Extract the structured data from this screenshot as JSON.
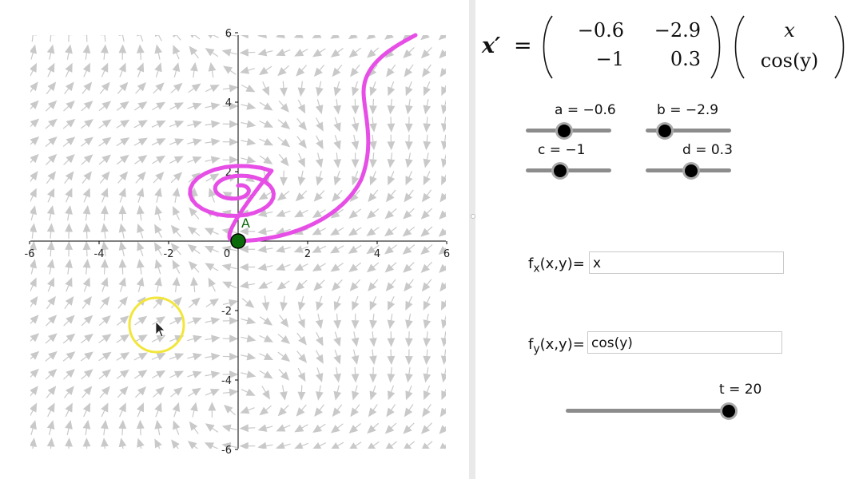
{
  "graph": {
    "axes": {
      "x_ticks": [
        "-6",
        "-4",
        "-2",
        "0",
        "2",
        "4",
        "6"
      ],
      "y_ticks": [
        "6",
        "4",
        "2",
        "-2",
        "-4",
        "-6"
      ],
      "x_range": [
        -6,
        6
      ],
      "y_range": [
        -6,
        6
      ]
    },
    "point": {
      "label": "A",
      "x": 0,
      "y": 0,
      "color": "#0a6a0a"
    },
    "trajectory_color": "#e64ee6",
    "cursor_circle_color": "#f2e63c",
    "field_color": "#c9c9c9"
  },
  "equation": {
    "lhs": "x′",
    "equals": "=",
    "matrix": [
      [
        "−0.6",
        "−2.9"
      ],
      [
        "−1",
        "0.3"
      ]
    ],
    "vector": [
      "x",
      "cos(y)"
    ]
  },
  "sliders": [
    {
      "id": "a",
      "label": "a = −0.6",
      "value": -0.6,
      "fraction": 0.45
    },
    {
      "id": "b",
      "label": "b = −2.9",
      "value": -2.9,
      "fraction": 0.22
    },
    {
      "id": "c",
      "label": "c = −1",
      "value": -1,
      "fraction": 0.4
    },
    {
      "id": "d",
      "label": "d = 0.3",
      "value": 0.3,
      "fraction": 0.53
    }
  ],
  "inputs": {
    "fx": {
      "label_main": "f",
      "label_sub": "x",
      "label_rest": "(x,y)=",
      "value": "x"
    },
    "fy": {
      "label_main": "f",
      "label_sub": "y",
      "label_rest": "(x,y)=",
      "value": "cos(y)"
    }
  },
  "t_slider": {
    "label": "t = 20",
    "value": 20,
    "fraction": 1.0
  }
}
